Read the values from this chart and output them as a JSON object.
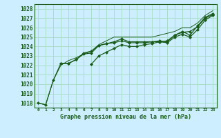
{
  "bg_color": "#cceeff",
  "grid_color": "#aaddcc",
  "line_color": "#1a5c1a",
  "x_ticks": [
    0,
    1,
    2,
    3,
    4,
    5,
    6,
    7,
    8,
    9,
    10,
    11,
    12,
    13,
    14,
    15,
    16,
    17,
    18,
    19,
    20,
    21,
    22,
    23
  ],
  "ylim": [
    1017.5,
    1028.5
  ],
  "xlim": [
    -0.5,
    23.5
  ],
  "yticks": [
    1018,
    1019,
    1020,
    1021,
    1022,
    1023,
    1024,
    1025,
    1026,
    1027,
    1028
  ],
  "xlabel": "Graphe pression niveau de la mer (hPa)",
  "line1": [
    1018.0,
    1017.8,
    1020.4,
    1022.2,
    1022.2,
    1022.6,
    1023.3,
    1023.5,
    1024.1,
    1024.3,
    1024.5,
    1024.8,
    1024.5,
    1024.5,
    1024.5,
    1024.5,
    1024.6,
    1024.5,
    1025.2,
    1025.6,
    1025.2,
    1026.2,
    1027.1,
    1027.5
  ],
  "line2": [
    null,
    null,
    null,
    1022.2,
    1022.2,
    1022.6,
    1023.2,
    1023.3,
    1024.1,
    1024.3,
    1024.4,
    1024.6,
    1024.4,
    1024.4,
    1024.4,
    1024.5,
    1024.5,
    1024.4,
    1025.0,
    1025.3,
    1025.0,
    1025.8,
    1026.8,
    1027.3
  ],
  "line3": [
    null,
    null,
    null,
    null,
    null,
    null,
    null,
    1022.1,
    1023.0,
    1023.4,
    1023.8,
    1024.2,
    1024.0,
    1024.0,
    1024.2,
    1024.3,
    1024.5,
    1024.6,
    1025.2,
    1025.5,
    1025.6,
    1026.1,
    1027.0,
    1027.4
  ],
  "line4_thin": [
    1018.0,
    1017.8,
    1020.4,
    1022.0,
    1022.5,
    1022.8,
    1023.2,
    1023.5,
    1024.2,
    1024.6,
    1025.0,
    1025.0,
    1025.0,
    1025.0,
    1025.0,
    1025.0,
    1025.2,
    1025.4,
    1025.6,
    1026.0,
    1026.0,
    1026.5,
    1027.3,
    1027.8
  ]
}
